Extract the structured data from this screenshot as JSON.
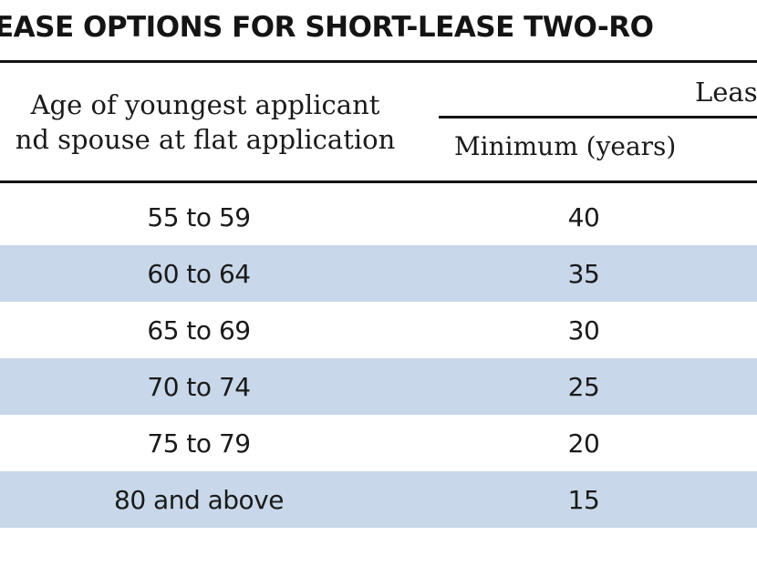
{
  "title": "EASE OPTIONS FOR SHORT-LEASE TWO-RO",
  "header": {
    "age_line1": "Age of youngest applicant",
    "age_line2": "nd spouse at flat application",
    "lease": "Leas",
    "minimum": "Minimum (years)"
  },
  "rows": [
    {
      "age": "55 to 59",
      "minimum": "40"
    },
    {
      "age": "60 to 64",
      "minimum": "35"
    },
    {
      "age": "65 to 69",
      "minimum": "30"
    },
    {
      "age": "70 to 74",
      "minimum": "25"
    },
    {
      "age": "75 to 79",
      "minimum": "20"
    },
    {
      "age": "80 and above",
      "minimum": "15"
    }
  ],
  "colors": {
    "shade": "#c8d8ea",
    "rule": "#141414"
  }
}
